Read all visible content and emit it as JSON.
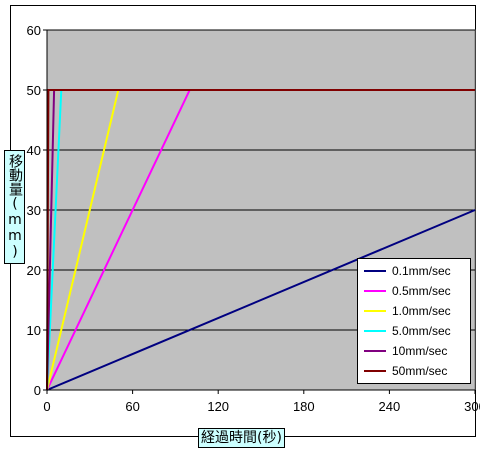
{
  "chart_data": {
    "type": "line",
    "title": "",
    "xlabel": "経過時間(秒)",
    "ylabel": "移動量(mm)",
    "xlim": [
      0,
      300
    ],
    "ylim": [
      0,
      60
    ],
    "x_ticks": [
      "0",
      "60",
      "120",
      "180",
      "240",
      "300"
    ],
    "y_ticks": [
      "0",
      "10",
      "20",
      "30",
      "40",
      "50",
      "60"
    ],
    "grid": "horizontal",
    "plot_background": "#c0c0c0",
    "legend_position": "right",
    "series": [
      {
        "name": "0.1mm/sec",
        "color": "#000080",
        "x": [
          0,
          300
        ],
        "y": [
          0,
          30
        ]
      },
      {
        "name": "0.5mm/sec",
        "color": "#ff00ff",
        "x": [
          0,
          100,
          300
        ],
        "y": [
          0,
          50,
          50
        ]
      },
      {
        "name": "1.0mm/sec",
        "color": "#ffff00",
        "x": [
          0,
          50,
          300
        ],
        "y": [
          0,
          50,
          50
        ]
      },
      {
        "name": "5.0mm/sec",
        "color": "#00ffff",
        "x": [
          0,
          10,
          300
        ],
        "y": [
          0,
          50,
          50
        ]
      },
      {
        "name": "10mm/sec",
        "color": "#800080",
        "x": [
          0,
          5,
          300
        ],
        "y": [
          0,
          50,
          50
        ]
      },
      {
        "name": "50mm/sec",
        "color": "#800000",
        "x": [
          0,
          1,
          300
        ],
        "y": [
          0,
          50,
          50
        ]
      }
    ]
  }
}
